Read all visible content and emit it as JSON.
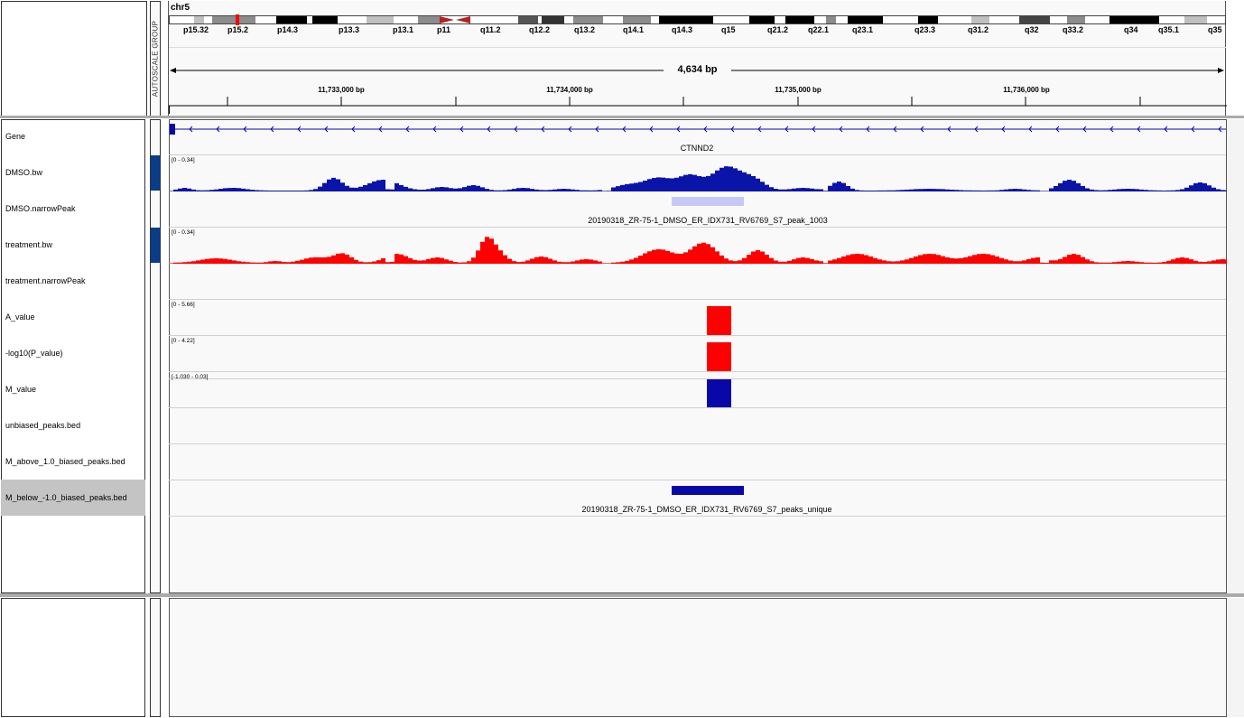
{
  "header": {
    "chromosome": "chr5",
    "autoscale_label": "AUTOSCALE GROUP",
    "span_label": "4,634 bp",
    "ruler_ticks": [
      "11,733,000 bp",
      "11,734,000 bp",
      "11,735,000 bp",
      "11,736,000 bp"
    ],
    "cytobands": [
      "p15.32",
      "p15.2",
      "p14.3",
      "p13.3",
      "p13.1",
      "p11",
      "q11.2",
      "q12.2",
      "q13.2",
      "q14.1",
      "q14.3",
      "q15",
      "q21.2",
      "q22.1",
      "q23.1",
      "q23.3",
      "q31.2",
      "q32",
      "q33.2",
      "q34",
      "q35.1",
      "q35"
    ]
  },
  "tracks": [
    {
      "name": "Gene",
      "range": "",
      "feature_label": "CTNND2"
    },
    {
      "name": "DMSO.bw",
      "range": "[0 - 0.34]",
      "color": "#0a14a8"
    },
    {
      "name": "DMSO.narrowPeak",
      "range": "",
      "feature_label": "20190318_ZR-75-1_DMSO_ER_IDX731_RV6769_S7_peak_1003"
    },
    {
      "name": "treatment.bw",
      "range": "[0 - 0.34]",
      "color": "#ff0000"
    },
    {
      "name": "treatment.narrowPeak",
      "range": ""
    },
    {
      "name": "A_value",
      "range": "[0 - 5.66]"
    },
    {
      "name": "-log10(P_value)",
      "range": "[0 - 4.22]"
    },
    {
      "name": "M_value",
      "range": "[-1.030 - 0.03]"
    },
    {
      "name": "unbiased_peaks.bed",
      "range": ""
    },
    {
      "name": "M_above_1.0_biased_peaks.bed",
      "range": ""
    },
    {
      "name": "M_below_-1.0_biased_peaks.bed",
      "range": "",
      "feature_label": "20190318_ZR-75-1_DMSO_ER_IDX731_RV6769_S7_peaks_unique",
      "selected": true
    }
  ],
  "colors": {
    "signal_blue": "#0a14a8",
    "signal_red": "#ff0000",
    "peak_light": "#c8c8f8",
    "bed_blue": "#0808a8",
    "track_attr_blue": "#0a3c8c",
    "selected_bg": "#c4c4c4"
  }
}
